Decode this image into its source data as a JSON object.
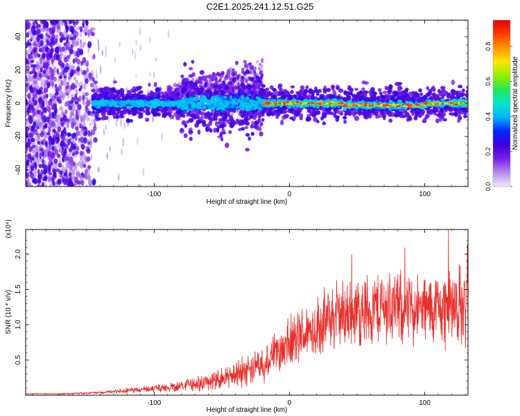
{
  "title": "C2E1.2025.241.12.51.G25",
  "colors": {
    "snr_line": "#e8312c",
    "axis": "#000000",
    "background": "#ffffff"
  },
  "chart_data": [
    {
      "type": "heatmap",
      "name": "spectrogram",
      "xlabel": "Height of straight line (km)",
      "ylabel": "Frequency (Hz)",
      "xlim": [
        -195,
        132
      ],
      "ylim": [
        -50,
        50
      ],
      "xticks": [
        -100,
        0,
        100
      ],
      "yticks": [
        -40,
        -20,
        0,
        20,
        40
      ],
      "colorbar": {
        "label": "Normalized spectral amplitude",
        "range": [
          0.0,
          0.95
        ],
        "ticks": [
          0.0,
          0.2,
          0.4,
          0.6,
          0.8
        ],
        "colormap": [
          "#f0e8ff",
          "#b48cf0",
          "#7a1ee8",
          "#3c00e0",
          "#0028ff",
          "#00b4ff",
          "#00e6c8",
          "#28e650",
          "#96ee00",
          "#ffe600",
          "#ff9600",
          "#ff3c00",
          "#e60000"
        ]
      },
      "features": {
        "noise_region_km": [
          -195,
          -145
        ],
        "signal_start_km": -145,
        "signal_center_hz": 0,
        "signal_band_halfwidth_hz": 4,
        "scintillation_region_km": [
          -80,
          -20
        ]
      }
    },
    {
      "type": "line",
      "name": "snr",
      "xlabel": "Height of straight line (km)",
      "ylabel": "SNR (10 * v/v)",
      "yscale_label": "(x10⁴)",
      "xlim": [
        -195,
        132
      ],
      "ylim": [
        0,
        2.35
      ],
      "xticks": [
        -100,
        0,
        100
      ],
      "yticks": [
        0.5,
        1.0,
        1.5,
        2.0
      ],
      "x": [
        -195,
        -180,
        -165,
        -150,
        -140,
        -130,
        -120,
        -110,
        -100,
        -90,
        -80,
        -70,
        -60,
        -50,
        -40,
        -30,
        -20,
        -10,
        0,
        10,
        20,
        30,
        40,
        50,
        60,
        70,
        80,
        90,
        100,
        110,
        120,
        132
      ],
      "y": [
        0.02,
        0.02,
        0.02,
        0.03,
        0.04,
        0.05,
        0.07,
        0.08,
        0.09,
        0.11,
        0.13,
        0.16,
        0.19,
        0.24,
        0.3,
        0.38,
        0.47,
        0.58,
        0.72,
        0.86,
        0.98,
        1.08,
        1.14,
        1.18,
        1.22,
        1.25,
        1.24,
        1.22,
        1.2,
        1.23,
        1.26,
        1.28
      ],
      "spread": [
        0.005,
        0.005,
        0.008,
        0.01,
        0.015,
        0.02,
        0.03,
        0.035,
        0.04,
        0.05,
        0.06,
        0.08,
        0.1,
        0.12,
        0.15,
        0.18,
        0.22,
        0.26,
        0.3,
        0.33,
        0.35,
        0.36,
        0.38,
        0.4,
        0.42,
        0.42,
        0.41,
        0.4,
        0.4,
        0.42,
        0.45,
        0.48
      ]
    }
  ]
}
